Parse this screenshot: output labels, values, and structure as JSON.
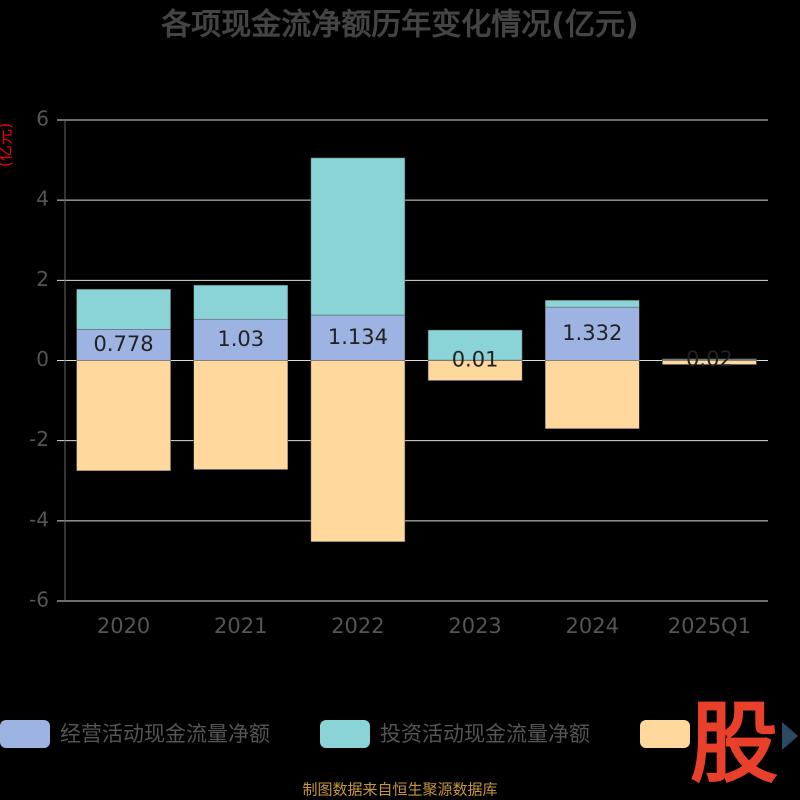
{
  "chart_data": {
    "type": "bar",
    "stacked": true,
    "title": "各项现金流净额历年变化情况(亿元)",
    "y_label": "(亿元)",
    "categories": [
      "2020",
      "2021",
      "2022",
      "2023",
      "2024",
      "2025Q1"
    ],
    "series": [
      {
        "name": "经营活动现金流量净额",
        "color": "#9db4e2",
        "values": [
          0.778,
          1.03,
          1.134,
          0.01,
          1.332,
          0.02
        ],
        "show_labels": true
      },
      {
        "name": "投资活动现金流量净额",
        "color": "#8ad3d7",
        "values": [
          1.0,
          0.85,
          3.92,
          0.75,
          0.17,
          0.02
        ]
      },
      {
        "color": "#fed89c",
        "values": [
          -2.75,
          -2.72,
          -4.52,
          -0.5,
          -1.7,
          -0.1
        ]
      }
    ],
    "ylim": [
      -6,
      6
    ],
    "yticks": [
      -6,
      -4,
      -2,
      0,
      2,
      4,
      6
    ],
    "grid": true,
    "watermark": "股",
    "source": "制图数据来自恒生聚源数据库"
  }
}
